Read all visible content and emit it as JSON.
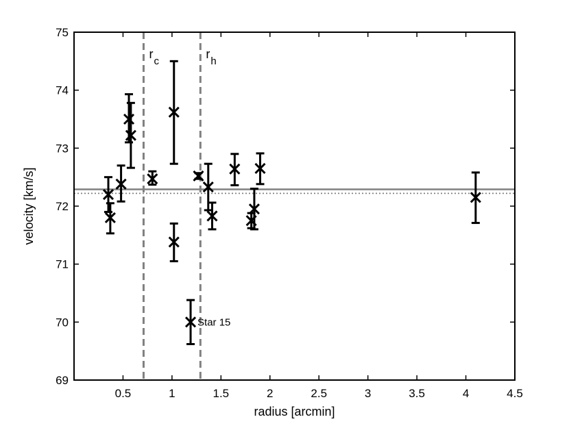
{
  "chart_data": {
    "type": "scatter",
    "title": "",
    "xlabel": "radius [arcmin]",
    "ylabel": "velocity [km/s]",
    "xlim": [
      0,
      4.5
    ],
    "ylim": [
      69,
      75
    ],
    "xticks": [
      0.5,
      1,
      1.5,
      2,
      2.5,
      3,
      3.5,
      4,
      4.5
    ],
    "xtick_labels": [
      "0.5",
      "1",
      "1.5",
      "2",
      "2.5",
      "3",
      "3.5",
      "4",
      "4.5"
    ],
    "yticks": [
      69,
      70,
      71,
      72,
      73,
      74,
      75
    ],
    "ytick_labels": [
      "69",
      "70",
      "71",
      "72",
      "73",
      "74",
      "75"
    ],
    "grid": false,
    "legend": "none",
    "marker": "x",
    "points": [
      {
        "x": 0.35,
        "y": 72.2,
        "yerr_low": 71.9,
        "yerr_high": 72.5
      },
      {
        "x": 0.37,
        "y": 71.8,
        "yerr_low": 71.53,
        "yerr_high": 72.05
      },
      {
        "x": 0.48,
        "y": 72.38,
        "yerr_low": 72.08,
        "yerr_high": 72.7
      },
      {
        "x": 0.56,
        "y": 73.5,
        "yerr_low": 73.1,
        "yerr_high": 73.93
      },
      {
        "x": 0.58,
        "y": 73.22,
        "yerr_low": 72.66,
        "yerr_high": 73.78
      },
      {
        "x": 0.8,
        "y": 72.47,
        "yerr_low": 72.37,
        "yerr_high": 72.6
      },
      {
        "x": 1.02,
        "y": 73.62,
        "yerr_low": 72.73,
        "yerr_high": 74.5
      },
      {
        "x": 1.02,
        "y": 71.38,
        "yerr_low": 71.05,
        "yerr_high": 71.7
      },
      {
        "x": 1.19,
        "y": 70.0,
        "yerr_low": 69.62,
        "yerr_high": 70.38
      },
      {
        "x": 1.27,
        "y": 72.52,
        "yerr_low": 72.47,
        "yerr_high": 72.57
      },
      {
        "x": 1.37,
        "y": 72.33,
        "yerr_low": 71.93,
        "yerr_high": 72.73
      },
      {
        "x": 1.41,
        "y": 71.83,
        "yerr_low": 71.6,
        "yerr_high": 72.06
      },
      {
        "x": 1.64,
        "y": 72.64,
        "yerr_low": 72.36,
        "yerr_high": 72.9
      },
      {
        "x": 1.81,
        "y": 71.75,
        "yerr_low": 71.62,
        "yerr_high": 71.88
      },
      {
        "x": 1.84,
        "y": 71.95,
        "yerr_low": 71.6,
        "yerr_high": 72.3
      },
      {
        "x": 1.9,
        "y": 72.65,
        "yerr_low": 72.38,
        "yerr_high": 72.91
      },
      {
        "x": 4.1,
        "y": 72.15,
        "yerr_low": 71.71,
        "yerr_high": 72.58
      }
    ],
    "vertical_lines": [
      {
        "x": 0.71,
        "label": "r",
        "subscript": "c",
        "style": "dashed",
        "color": "#808080"
      },
      {
        "x": 1.29,
        "label": "r",
        "subscript": "h",
        "style": "dashed",
        "color": "#808080"
      }
    ],
    "horizontal_lines": [
      {
        "y": 72.29,
        "style": "solid",
        "color": "#808080"
      },
      {
        "y": 72.22,
        "style": "dotted",
        "color": "#808080"
      }
    ],
    "annotations": [
      {
        "text": "Star 15",
        "x": 1.26,
        "y": 70.0
      }
    ]
  }
}
